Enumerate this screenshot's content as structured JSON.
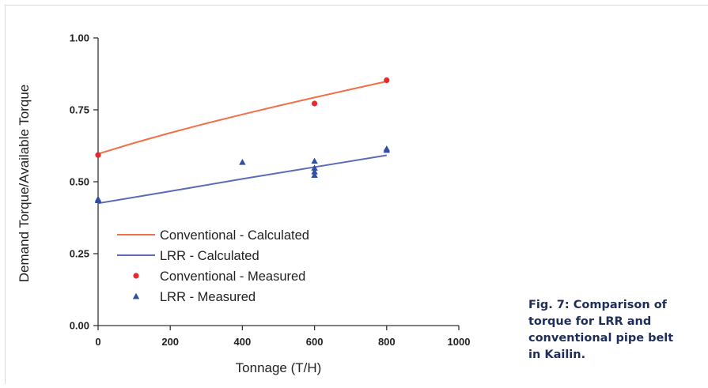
{
  "chart_data": {
    "type": "scatter",
    "title": "",
    "xlabel": "Tonnage (T/H)",
    "ylabel": "Demand Torque/Available Torque",
    "xlim": [
      0,
      1000
    ],
    "ylim": [
      0,
      1.0
    ],
    "x_ticks": [
      "0",
      "200",
      "400",
      "600",
      "800",
      "1000"
    ],
    "y_ticks": [
      "0.00",
      "0.25",
      "0.50",
      "0.75",
      "1.00"
    ],
    "grid": false,
    "legend_position": "lower-left",
    "series": [
      {
        "name": "Conventional - Calculated",
        "kind": "line",
        "color": "#f07048",
        "x": [
          0,
          100,
          200,
          300,
          400,
          500,
          600,
          700,
          800
        ],
        "y": [
          0.597,
          0.635,
          0.67,
          0.703,
          0.734,
          0.764,
          0.793,
          0.821,
          0.849
        ]
      },
      {
        "name": "LRR - Calculated",
        "kind": "line",
        "color": "#5c6bb8",
        "x": [
          0,
          200,
          400,
          600,
          800
        ],
        "y": [
          0.425,
          0.467,
          0.51,
          0.551,
          0.592
        ]
      },
      {
        "name": "Conventional - Measured",
        "kind": "circle",
        "color": "#e8282b",
        "x": [
          0,
          600,
          800
        ],
        "y": [
          0.593,
          0.772,
          0.853
        ]
      },
      {
        "name": "LRR - Measured",
        "kind": "triangle",
        "color": "#2e4fa3",
        "x": [
          0,
          0,
          400,
          600,
          600,
          600,
          600,
          800,
          800
        ],
        "y": [
          0.435,
          0.44,
          0.568,
          0.572,
          0.548,
          0.535,
          0.523,
          0.615,
          0.61
        ]
      }
    ]
  },
  "caption": {
    "lines": [
      "Fig. 7: Comparison of",
      "torque for LRR and",
      "conventional pipe belt",
      "in Kailin."
    ]
  }
}
